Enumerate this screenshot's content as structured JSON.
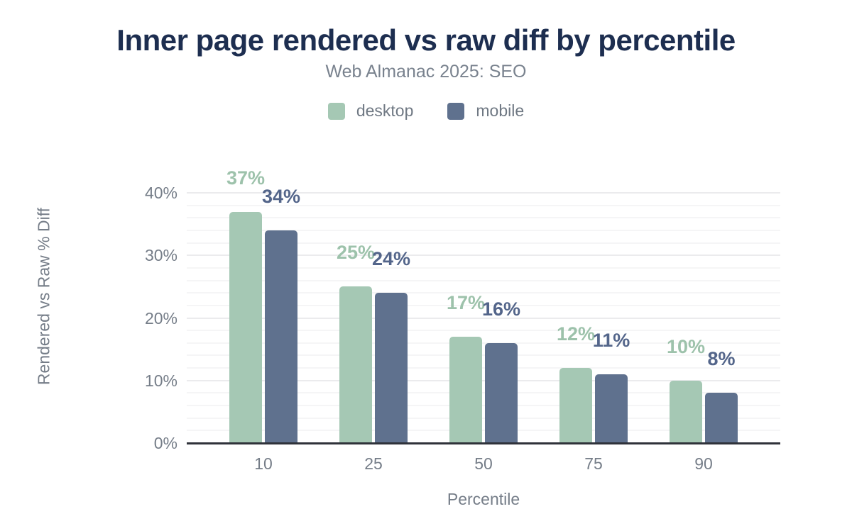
{
  "header": {
    "title": "Inner page rendered vs raw diff by percentile",
    "subtitle": "Web Almanac 2025: SEO"
  },
  "legend": [
    {
      "label": "desktop",
      "color": "#a5c8b4"
    },
    {
      "label": "mobile",
      "color": "#5f718e"
    }
  ],
  "colors": {
    "title": "#1d2e50",
    "muted_text": "#757d88",
    "axis_line": "#2f323a",
    "gridline_major": "#ebebed",
    "gridline_minor": "#f5f5f6",
    "background": "#ffffff"
  },
  "chart_data": {
    "type": "bar",
    "title": "Inner page rendered vs raw diff by percentile",
    "subtitle": "Web Almanac 2025: SEO",
    "categories": [
      "10",
      "25",
      "50",
      "75",
      "90"
    ],
    "series": [
      {
        "name": "desktop",
        "color": "#a5c8b4",
        "label_color": "#9dc2ab",
        "values": [
          37,
          25,
          17,
          12,
          10
        ],
        "labels": [
          "37%",
          "25%",
          "17%",
          "12%",
          "10%"
        ]
      },
      {
        "name": "mobile",
        "color": "#5f718e",
        "label_color": "#53658a",
        "values": [
          34,
          24,
          16,
          11,
          8
        ],
        "labels": [
          "34%",
          "24%",
          "16%",
          "11%",
          "8%"
        ]
      }
    ],
    "xlabel": "Percentile",
    "ylabel": "Rendered vs Raw % Diff",
    "ylim": [
      0,
      45
    ],
    "yticks": [
      0,
      10,
      20,
      30,
      40
    ],
    "ytick_labels": [
      "0%",
      "10%",
      "20%",
      "30%",
      "40%"
    ],
    "minor_grid_step": 2,
    "grid": true,
    "legend_position": "top"
  }
}
